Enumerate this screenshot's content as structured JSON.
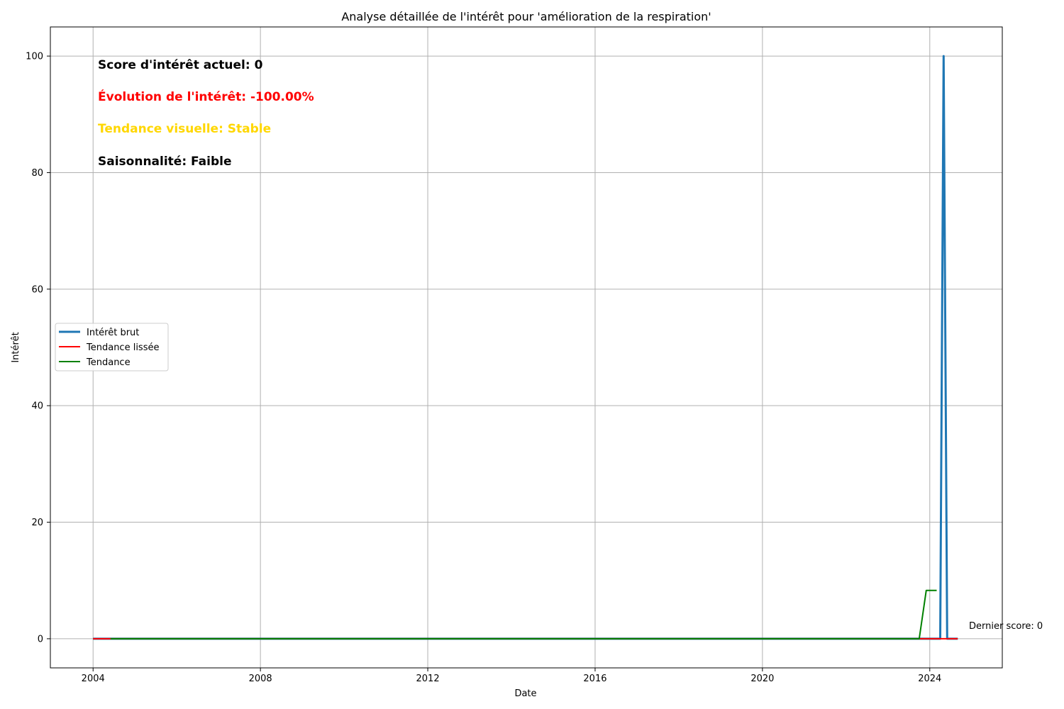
{
  "chart_data": {
    "type": "line",
    "title": "Analyse détaillée de l'intérêt pour 'amélioration de la respiration'",
    "xlabel": "Date",
    "ylabel": "Intérêt",
    "xlim": [
      "2002-12-24",
      "2025-09-25"
    ],
    "ylim": [
      -5,
      105
    ],
    "x_ticks": [
      "2004",
      "2008",
      "2012",
      "2016",
      "2020",
      "2024"
    ],
    "y_ticks": [
      0,
      20,
      40,
      60,
      80,
      100
    ],
    "grid": true,
    "legend_position": "center-left",
    "series": [
      {
        "name": "Intérêt brut",
        "color": "#1f77b4",
        "points": [
          {
            "x": "2004-01-01",
            "y": 0
          },
          {
            "x": "2024-04-01",
            "y": 0
          },
          {
            "x": "2024-05-01",
            "y": 100
          },
          {
            "x": "2024-06-01",
            "y": 0
          },
          {
            "x": "2024-09-01",
            "y": 0
          }
        ]
      },
      {
        "name": "Tendance lissée",
        "color": "#ff0000",
        "points": [
          {
            "x": "2004-01-01",
            "y": 0
          },
          {
            "x": "2004-06-01",
            "y": 0
          },
          {
            "x": "2023-10-01",
            "y": 0
          },
          {
            "x": "2024-09-01",
            "y": 0
          }
        ]
      },
      {
        "name": "Tendance",
        "color": "#008000",
        "points": [
          {
            "x": "2004-06-01",
            "y": 0
          },
          {
            "x": "2023-10-01",
            "y": 0
          },
          {
            "x": "2023-12-01",
            "y": 8.3
          },
          {
            "x": "2024-03-01",
            "y": 8.3
          }
        ]
      }
    ],
    "annotations": {
      "score": {
        "text": "Score d'intérêt actuel: 0",
        "color": "#000000"
      },
      "evolution": {
        "text": "Évolution de l'intérêt: -100.00%",
        "color": "#ff0000"
      },
      "trend": {
        "text": "Tendance visuelle: Stable",
        "color": "#ffd700"
      },
      "seasonality": {
        "text": "Saisonnalité: Faible",
        "color": "#000000"
      },
      "last_score": {
        "text": "Dernier score: 0",
        "color": "#000000"
      }
    }
  }
}
